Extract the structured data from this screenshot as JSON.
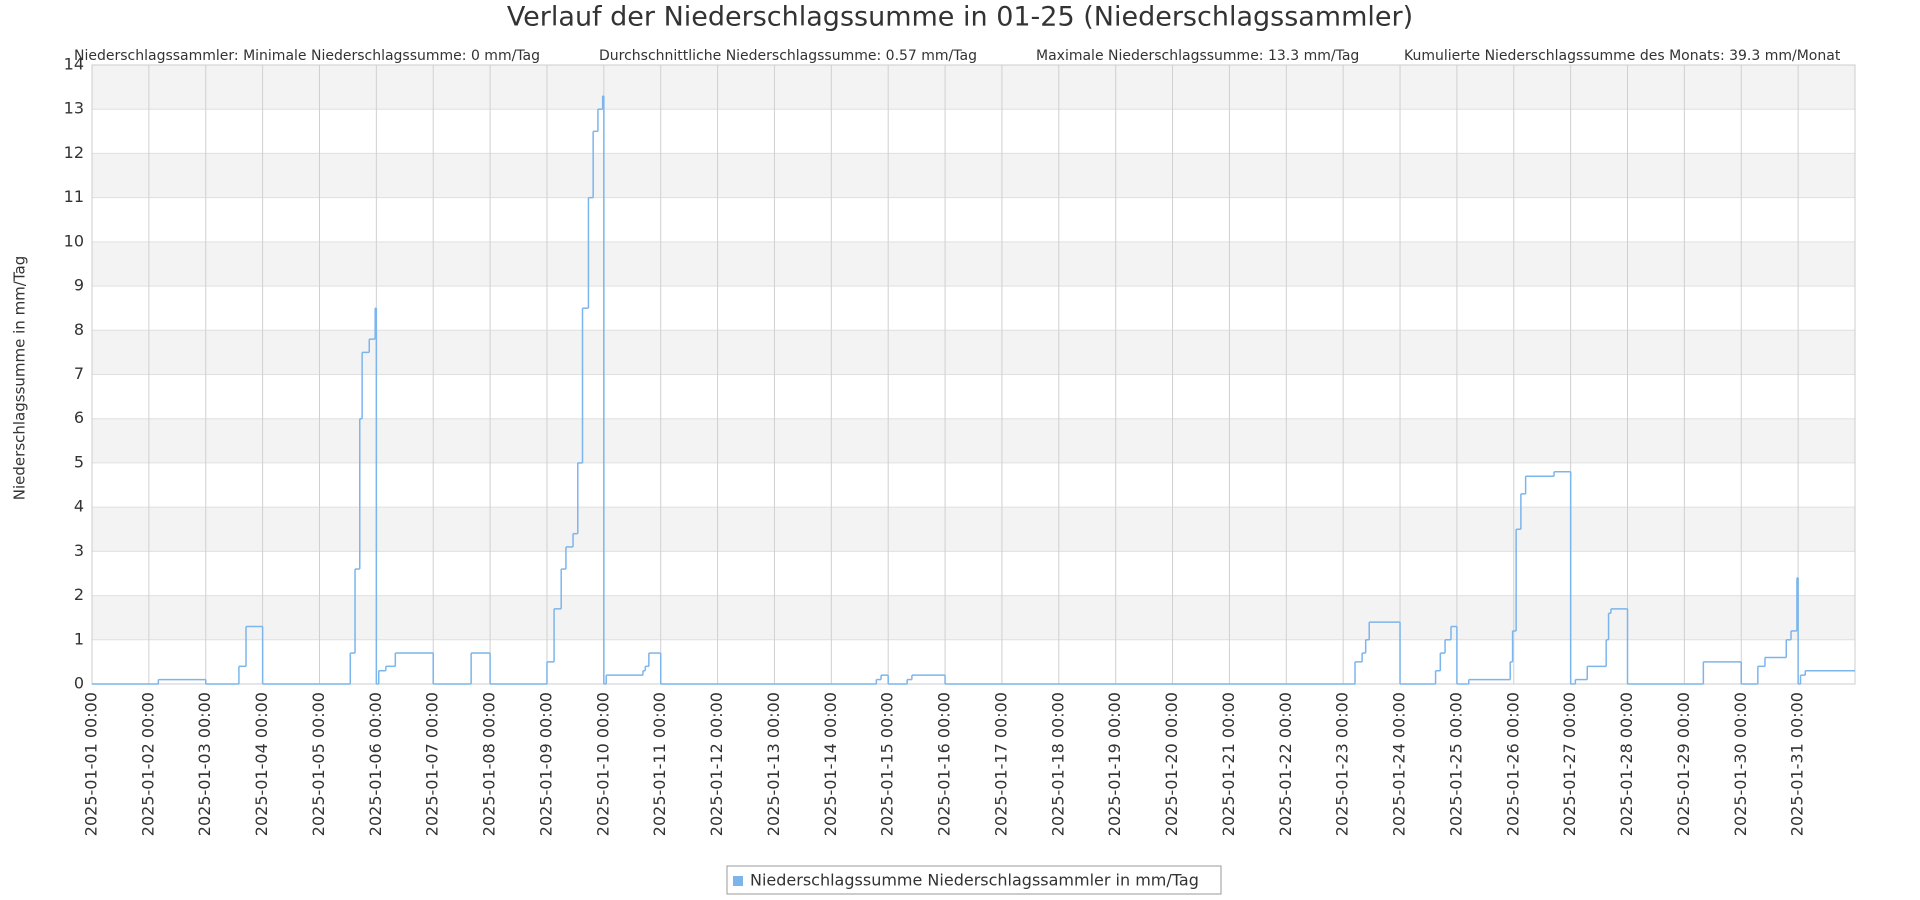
{
  "chart_data": {
    "type": "line",
    "step": "after",
    "title": "Verlauf der Niederschlagssumme in 01-25 (Niederschlagssammler)",
    "annotations": [
      "Niederschlagssammler: Minimale Niederschlagssumme: 0 mm/Tag",
      "Durchschnittliche Niederschlagssumme: 0.57 mm/Tag",
      "Maximale Niederschlagssumme: 13.3 mm/Tag",
      "Kumulierte Niederschlagssumme des Monats: 39.3 mm/Monat"
    ],
    "y_label": "Niederschlagssumme in mm/Tag",
    "x": [
      "2025-01-01 00:00",
      "2025-01-02 04:00",
      "2025-01-03 00:00",
      "2025-01-03 14:00",
      "2025-01-03 17:00",
      "2025-01-04 00:00",
      "2025-01-05 13:00",
      "2025-01-05 15:00",
      "2025-01-05 17:00",
      "2025-01-05 18:00",
      "2025-01-05 21:00",
      "2025-01-05 23:30",
      "2025-01-06 00:00",
      "2025-01-06 01:00",
      "2025-01-06 04:00",
      "2025-01-06 08:00",
      "2025-01-07 00:00",
      "2025-01-07 16:00",
      "2025-01-08 00:00",
      "2025-01-09 00:00",
      "2025-01-09 03:00",
      "2025-01-09 06:00",
      "2025-01-09 08:00",
      "2025-01-09 11:00",
      "2025-01-09 13:00",
      "2025-01-09 15:00",
      "2025-01-09 17:30",
      "2025-01-09 19:30",
      "2025-01-09 21:30",
      "2025-01-09 23:30",
      "2025-01-10 00:00",
      "2025-01-10 01:00",
      "2025-01-10 16:30",
      "2025-01-10 17:30",
      "2025-01-10 19:00",
      "2025-01-11 00:00",
      "2025-01-14 19:00",
      "2025-01-14 21:00",
      "2025-01-15 00:00",
      "2025-01-15 08:00",
      "2025-01-15 10:00",
      "2025-01-16 00:00",
      "2025-01-23 05:00",
      "2025-01-23 08:00",
      "2025-01-23 09:30",
      "2025-01-23 11:00",
      "2025-01-24 00:00",
      "2025-01-24 15:00",
      "2025-01-24 17:00",
      "2025-01-24 19:00",
      "2025-01-24 21:30",
      "2025-01-25 00:00",
      "2025-01-25 05:00",
      "2025-01-25 22:30",
      "2025-01-25 23:30",
      "2025-01-26 01:00",
      "2025-01-26 03:00",
      "2025-01-26 05:00",
      "2025-01-26 17:00",
      "2025-01-27 00:00",
      "2025-01-27 02:00",
      "2025-01-27 07:00",
      "2025-01-27 15:00",
      "2025-01-27 16:00",
      "2025-01-27 17:00",
      "2025-01-28 00:00",
      "2025-01-29 08:00",
      "2025-01-30 00:00",
      "2025-01-30 07:00",
      "2025-01-30 10:00",
      "2025-01-30 19:00",
      "2025-01-30 21:00",
      "2025-01-30 23:30",
      "2025-01-31 00:00",
      "2025-01-31 01:00",
      "2025-01-31 03:00"
    ],
    "series": [
      {
        "name": "Niederschlagssumme Niederschlagssammler in mm/Tag",
        "color": "#7cb5ec",
        "values": [
          0,
          0.1,
          0,
          0.4,
          1.3,
          0,
          0.7,
          2.6,
          6.0,
          7.5,
          7.8,
          8.5,
          0,
          0.3,
          0.4,
          0.7,
          0,
          0.7,
          0,
          0.5,
          1.7,
          2.6,
          3.1,
          3.4,
          5.0,
          8.5,
          11.0,
          12.5,
          13.0,
          13.3,
          0,
          0.2,
          0.3,
          0.4,
          0.7,
          0,
          0.1,
          0.2,
          0,
          0.1,
          0.2,
          0,
          0.5,
          0.7,
          1.0,
          1.4,
          0,
          0.3,
          0.7,
          1.0,
          1.3,
          0,
          0.1,
          0.5,
          1.2,
          3.5,
          4.3,
          4.7,
          4.8,
          0,
          0.1,
          0.4,
          1.0,
          1.6,
          1.7,
          0,
          0.5,
          0,
          0.4,
          0.6,
          1.0,
          1.2,
          2.4,
          0,
          0.2,
          0.3
        ]
      }
    ],
    "xlim": [
      "2025-01-01 00:00",
      "2025-02-01 00:00"
    ],
    "xticks": [
      "2025-01-01 00:00",
      "2025-01-02 00:00",
      "2025-01-03 00:00",
      "2025-01-04 00:00",
      "2025-01-05 00:00",
      "2025-01-06 00:00",
      "2025-01-07 00:00",
      "2025-01-08 00:00",
      "2025-01-09 00:00",
      "2025-01-10 00:00",
      "2025-01-11 00:00",
      "2025-01-12 00:00",
      "2025-01-13 00:00",
      "2025-01-14 00:00",
      "2025-01-15 00:00",
      "2025-01-16 00:00",
      "2025-01-17 00:00",
      "2025-01-18 00:00",
      "2025-01-19 00:00",
      "2025-01-20 00:00",
      "2025-01-21 00:00",
      "2025-01-22 00:00",
      "2025-01-23 00:00",
      "2025-01-24 00:00",
      "2025-01-25 00:00",
      "2025-01-26 00:00",
      "2025-01-27 00:00",
      "2025-01-28 00:00",
      "2025-01-29 00:00",
      "2025-01-30 00:00",
      "2025-01-31 00:00"
    ],
    "ylim": [
      0,
      14
    ],
    "yticks": [
      0,
      1,
      2,
      3,
      4,
      5,
      6,
      7,
      8,
      9,
      10,
      11,
      12,
      13,
      14
    ],
    "grid": true,
    "legend": "bottom"
  }
}
